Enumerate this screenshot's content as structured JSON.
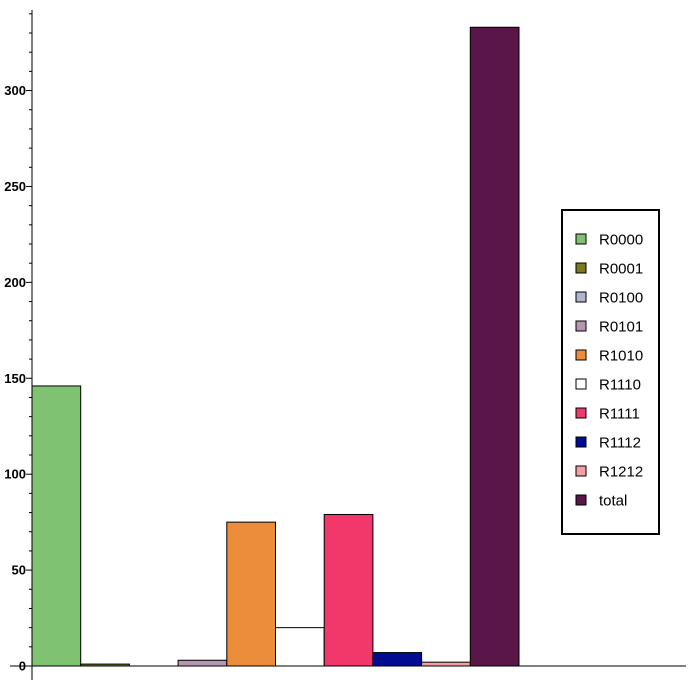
{
  "chart_data": {
    "type": "bar",
    "title": "",
    "xlabel": "",
    "ylabel": "",
    "ylim": [
      0,
      342
    ],
    "yticks": [
      0,
      50,
      100,
      150,
      200,
      250,
      300
    ],
    "legend_position": "right",
    "grid": false,
    "series": [
      {
        "name": "R0000",
        "value": 146,
        "color": "#7fc271"
      },
      {
        "name": "R0001",
        "value": 1,
        "color": "#7b7a1e"
      },
      {
        "name": "R0100",
        "value": 0,
        "color": "#b0b4cc"
      },
      {
        "name": "R0101",
        "value": 3,
        "color": "#b597b1"
      },
      {
        "name": "R1010",
        "value": 75,
        "color": "#ec8d3b"
      },
      {
        "name": "R1110",
        "value": 20,
        "color": "#ffffff"
      },
      {
        "name": "R1111",
        "value": 79,
        "color": "#f2376a"
      },
      {
        "name": "R1112",
        "value": 7,
        "color": "#000d92"
      },
      {
        "name": "R1212",
        "value": 2,
        "color": "#f39fa3"
      },
      {
        "name": "total",
        "value": 333,
        "color": "#5a1549"
      }
    ]
  }
}
